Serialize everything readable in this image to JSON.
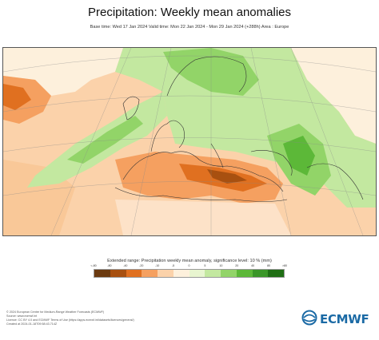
{
  "title": "Precipitation: Weekly mean anomalies",
  "subtitle": "Base time: Wed 17 Jan 2024 Valid time: Mon 22 Jan 2024 - Mon 29 Jan 2024 (+288h) Area : Europe",
  "legend": {
    "caption": "Extended range: Precipitation weekly mean anomaly, significance level: 10 % (mm)",
    "ticks": [
      "<-80",
      "-80",
      "-40",
      "-20",
      "-10",
      "-5",
      "0",
      "5",
      "10",
      "20",
      "40",
      "80",
      ">80"
    ],
    "colors": [
      "#6b3a10",
      "#a85010",
      "#e07020",
      "#f5a060",
      "#fbd2aa",
      "#fdf0dc",
      "#e8f5d0",
      "#c3e8a0",
      "#92d468",
      "#5cb838",
      "#3a9628",
      "#1f6e14"
    ]
  },
  "map": {
    "dry_colors": [
      "#fbd2aa",
      "#f5a060",
      "#e07020",
      "#a85010"
    ],
    "wet_colors": [
      "#c3e8a0",
      "#92d468",
      "#5cb838"
    ]
  },
  "footer": [
    "© 2024 European Centre for Medium-Range Weather Forecasts (ECMWF)",
    "Source: www.ecmwf.int",
    "Licence: CC BY 4.0 and ECMWF Terms of Use (https://apps.ecmwf.int/datasets/licences/general/)",
    "Created at 2024-01-18T09:58:43.714Z"
  ],
  "logo": {
    "brand": "ECMWF",
    "icon": "ecmwf-globe-icon",
    "color": "#1b6aa5"
  }
}
